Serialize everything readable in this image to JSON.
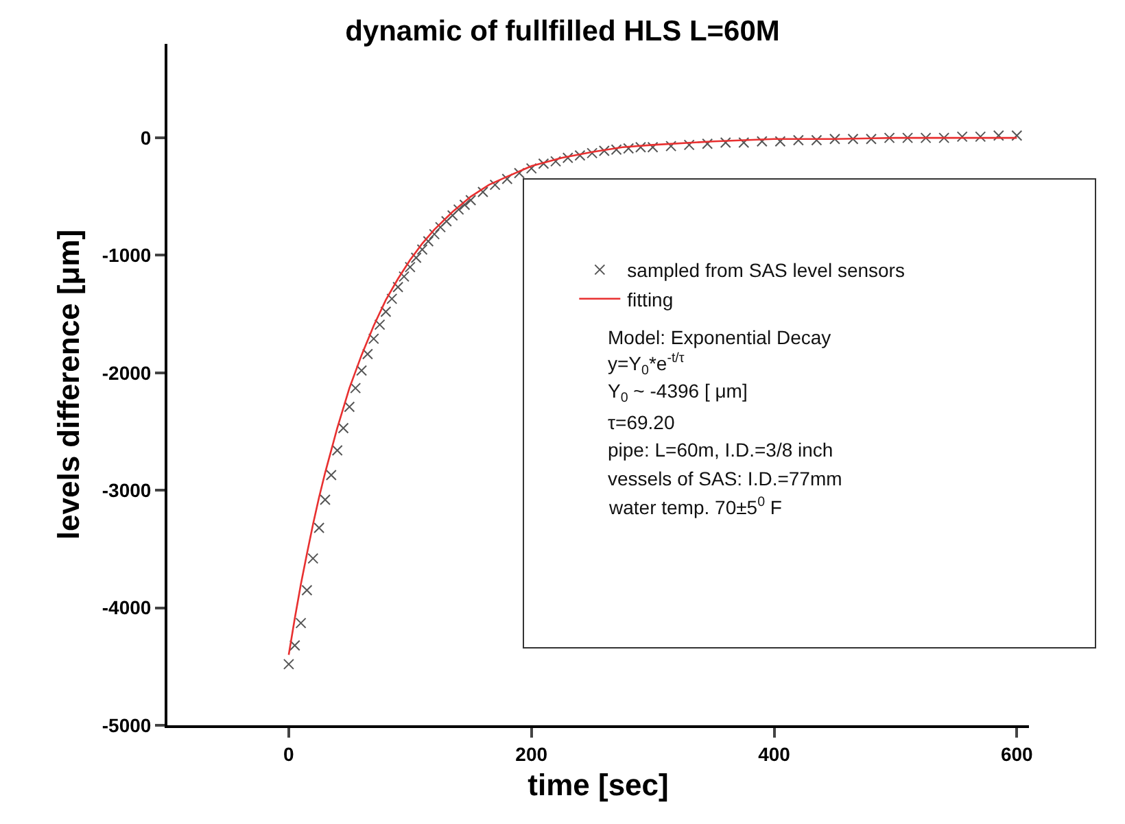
{
  "chart_data": {
    "type": "scatter",
    "title": "dynamic of fullfilled HLS L=60M",
    "xlabel": "time [sec]",
    "ylabel": "levels difference [μm]",
    "xlim": [
      -100,
      610
    ],
    "xticks": [
      0,
      200,
      400,
      600
    ],
    "ylim": [
      -5000,
      800
    ],
    "yticks": [
      -5000,
      -4000,
      -3000,
      -2000,
      -1000,
      0
    ],
    "grid": false,
    "legend": "right",
    "line_style": "solid",
    "annotations": [
      "Model: Exponential Decay",
      "y=Y$_{0}$*e$^{-t/τ}$",
      "Y$_{0}$ ~ -4396 [ μm]",
      "τ=69.20",
      "pipe: L=60m, I.D.=3/8 inch",
      "vessels of SAS: I.D.=77mm",
      "water temp. 70±5$^{0}$ F"
    ],
    "series": [
      {
        "name": "sampled from SAS level sensors",
        "marker": "cross",
        "color": "#555555",
        "x": [
          0,
          5,
          10,
          15,
          20,
          25,
          30,
          35,
          40,
          45,
          50,
          55,
          60,
          65,
          70,
          75,
          80,
          85,
          90,
          95,
          100,
          105,
          110,
          115,
          120,
          125,
          130,
          135,
          140,
          145,
          150,
          160,
          170,
          180,
          190,
          200,
          210,
          220,
          230,
          240,
          250,
          260,
          270,
          280,
          290,
          300,
          315,
          330,
          345,
          360,
          375,
          390,
          405,
          420,
          435,
          450,
          465,
          480,
          495,
          510,
          525,
          540,
          555,
          570,
          585,
          600
        ],
        "values": [
          -4480,
          -4320,
          -4130,
          -3850,
          -3580,
          -3320,
          -3080,
          -2870,
          -2660,
          -2470,
          -2290,
          -2130,
          -1980,
          -1840,
          -1710,
          -1590,
          -1480,
          -1370,
          -1270,
          -1180,
          -1100,
          -1020,
          -950,
          -880,
          -820,
          -760,
          -710,
          -660,
          -610,
          -570,
          -530,
          -460,
          -400,
          -350,
          -300,
          -260,
          -220,
          -200,
          -170,
          -150,
          -130,
          -110,
          -100,
          -90,
          -80,
          -80,
          -70,
          -60,
          -50,
          -40,
          -40,
          -30,
          -30,
          -20,
          -20,
          -10,
          -10,
          -10,
          0,
          0,
          0,
          0,
          10,
          10,
          20,
          20
        ]
      },
      {
        "name": "fitting",
        "type": "line",
        "marker": "none",
        "color": "#e83030",
        "x": [
          0,
          5,
          10,
          15,
          20,
          25,
          30,
          40,
          50,
          60,
          70,
          80,
          90,
          100,
          110,
          120,
          135,
          150,
          165,
          180,
          200,
          225,
          250,
          275,
          300,
          350,
          400,
          450,
          500,
          550,
          600
        ],
        "values": [
          -4400,
          -4090,
          -3800,
          -3540,
          -3290,
          -3060,
          -2850,
          -2470,
          -2130,
          -1850,
          -1600,
          -1380,
          -1200,
          -1040,
          -900,
          -780,
          -630,
          -500,
          -400,
          -330,
          -240,
          -170,
          -120,
          -80,
          -60,
          -30,
          -10,
          -10,
          0,
          0,
          0
        ]
      }
    ]
  }
}
